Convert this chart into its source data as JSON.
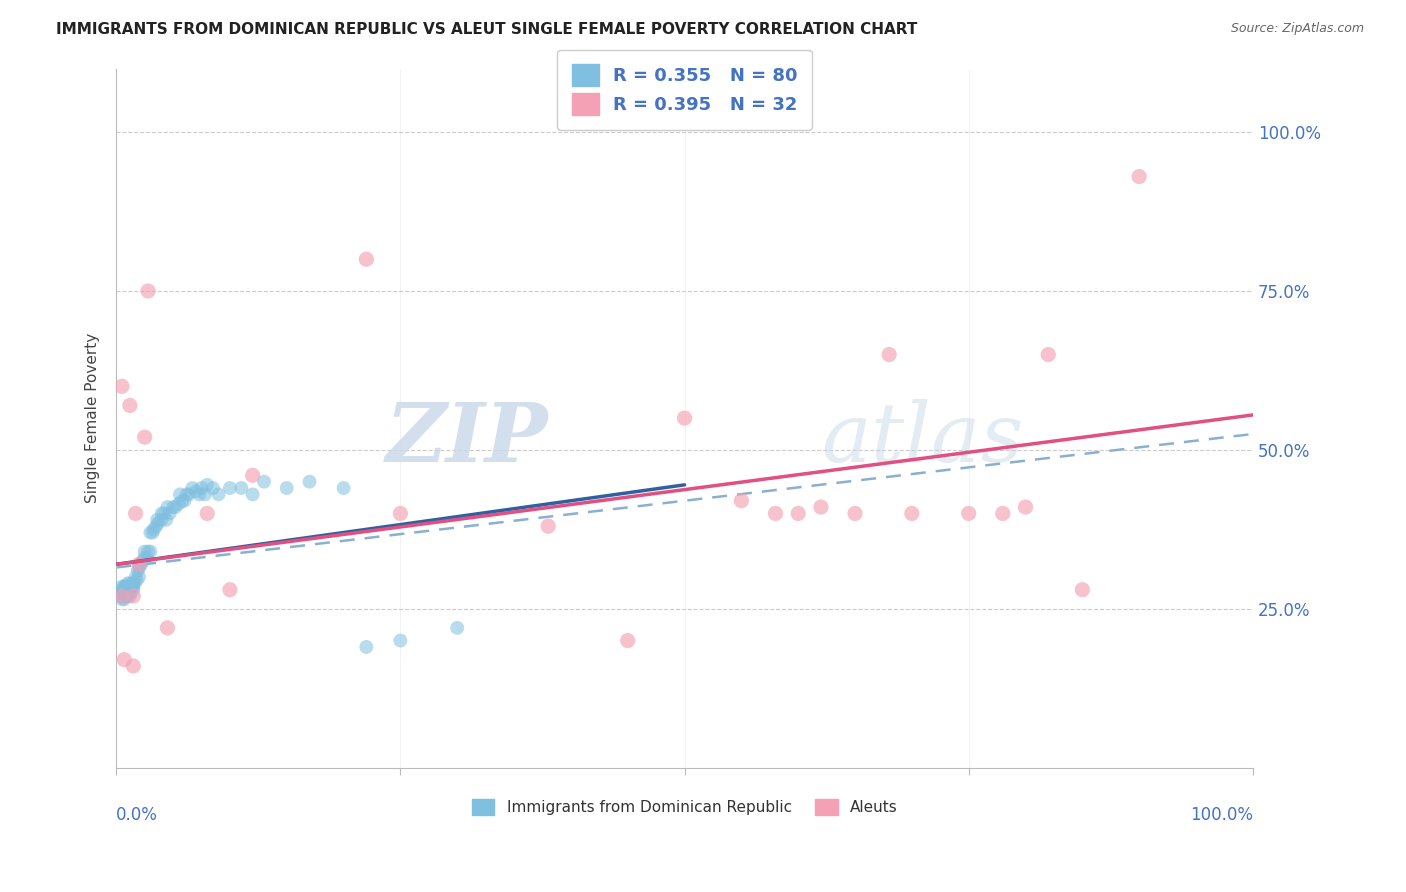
{
  "title": "IMMIGRANTS FROM DOMINICAN REPUBLIC VS ALEUT SINGLE FEMALE POVERTY CORRELATION CHART",
  "source": "Source: ZipAtlas.com",
  "ylabel": "Single Female Poverty",
  "legend_label1": "Immigrants from Dominican Republic",
  "legend_label2": "Aleuts",
  "R1": 0.355,
  "N1": 80,
  "R2": 0.395,
  "N2": 32,
  "color_blue": "#7fbfdf",
  "color_pink": "#f4a0b5",
  "color_blue_line": "#3060a0",
  "color_pink_line": "#e05080",
  "color_dashed_line": "#8ab0d0",
  "background_color": "#ffffff",
  "watermark_zip": "ZIP",
  "watermark_atlas": "atlas",
  "xlim": [
    0,
    1.0
  ],
  "ylim": [
    0,
    1.1
  ],
  "yticks": [
    0.25,
    0.5,
    0.75,
    1.0
  ],
  "ytick_labels": [
    "25.0%",
    "50.0%",
    "75.0%",
    "100.0%"
  ],
  "blue_x": [
    0.005,
    0.005,
    0.005,
    0.005,
    0.005,
    0.007,
    0.007,
    0.007,
    0.007,
    0.008,
    0.008,
    0.008,
    0.008,
    0.009,
    0.009,
    0.01,
    0.01,
    0.01,
    0.01,
    0.01,
    0.012,
    0.012,
    0.012,
    0.013,
    0.013,
    0.015,
    0.015,
    0.015,
    0.016,
    0.017,
    0.018,
    0.019,
    0.02,
    0.02,
    0.02,
    0.022,
    0.023,
    0.025,
    0.025,
    0.027,
    0.028,
    0.03,
    0.03,
    0.032,
    0.033,
    0.035,
    0.036,
    0.037,
    0.04,
    0.04,
    0.042,
    0.044,
    0.045,
    0.047,
    0.05,
    0.052,
    0.055,
    0.056,
    0.058,
    0.06,
    0.062,
    0.064,
    0.067,
    0.07,
    0.073,
    0.075,
    0.078,
    0.08,
    0.085,
    0.09,
    0.1,
    0.11,
    0.12,
    0.13,
    0.15,
    0.17,
    0.2,
    0.22,
    0.25,
    0.3
  ],
  "blue_y": [
    0.265,
    0.27,
    0.275,
    0.28,
    0.285,
    0.265,
    0.275,
    0.28,
    0.285,
    0.27,
    0.275,
    0.28,
    0.285,
    0.28,
    0.285,
    0.27,
    0.275,
    0.28,
    0.285,
    0.29,
    0.27,
    0.28,
    0.29,
    0.275,
    0.285,
    0.28,
    0.285,
    0.29,
    0.29,
    0.3,
    0.295,
    0.31,
    0.3,
    0.315,
    0.32,
    0.32,
    0.325,
    0.33,
    0.34,
    0.33,
    0.34,
    0.34,
    0.37,
    0.37,
    0.375,
    0.38,
    0.39,
    0.385,
    0.39,
    0.4,
    0.4,
    0.39,
    0.41,
    0.4,
    0.41,
    0.41,
    0.415,
    0.43,
    0.42,
    0.42,
    0.43,
    0.43,
    0.44,
    0.435,
    0.43,
    0.44,
    0.43,
    0.445,
    0.44,
    0.43,
    0.44,
    0.44,
    0.43,
    0.45,
    0.44,
    0.45,
    0.44,
    0.19,
    0.2,
    0.22
  ],
  "pink_x": [
    0.005,
    0.005,
    0.007,
    0.012,
    0.015,
    0.015,
    0.017,
    0.02,
    0.025,
    0.028,
    0.045,
    0.08,
    0.1,
    0.12,
    0.22,
    0.25,
    0.38,
    0.45,
    0.5,
    0.55,
    0.58,
    0.6,
    0.62,
    0.65,
    0.68,
    0.7,
    0.75,
    0.78,
    0.8,
    0.82,
    0.85,
    0.9
  ],
  "pink_y": [
    0.6,
    0.27,
    0.17,
    0.57,
    0.27,
    0.16,
    0.4,
    0.32,
    0.52,
    0.75,
    0.22,
    0.4,
    0.28,
    0.46,
    0.8,
    0.4,
    0.38,
    0.2,
    0.55,
    0.42,
    0.4,
    0.4,
    0.41,
    0.4,
    0.65,
    0.4,
    0.4,
    0.4,
    0.41,
    0.65,
    0.28,
    0.93
  ],
  "blue_line_x0": 0.0,
  "blue_line_y0": 0.32,
  "blue_line_x1": 0.5,
  "blue_line_y1": 0.445,
  "pink_line_x0": 0.0,
  "pink_line_y0": 0.32,
  "pink_line_x1": 1.0,
  "pink_line_y1": 0.555,
  "dash_line_x0": 0.0,
  "dash_line_y0": 0.315,
  "dash_line_x1": 1.0,
  "dash_line_y1": 0.525
}
